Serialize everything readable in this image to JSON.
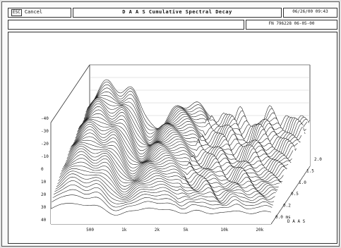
{
  "toolbar": {
    "esc_key": "ESC",
    "cancel_label": "Cancel",
    "title": "D A A S  Cumulative Spectral Decay",
    "timestamp": "06/26/00 09:43"
  },
  "status": {
    "message": "",
    "file_info": "FN 796228 06-05-00"
  },
  "chart_data": {
    "type": "waterfall",
    "title": "",
    "y_ticks": [
      "40",
      "30",
      "20",
      "10",
      "0",
      "-10",
      "-20",
      "-30",
      "-40"
    ],
    "freq_ticks": [
      "500",
      "1k",
      "2k",
      "5k",
      "10k",
      "20k"
    ],
    "time_ticks": [
      "0.0 ms",
      "0.2",
      "0.5",
      "1.0",
      "1.5",
      "2.0"
    ],
    "brand": "D A A S"
  },
  "colors": {
    "line": "#111111",
    "background": "#ffffff",
    "frame": "#333333"
  }
}
